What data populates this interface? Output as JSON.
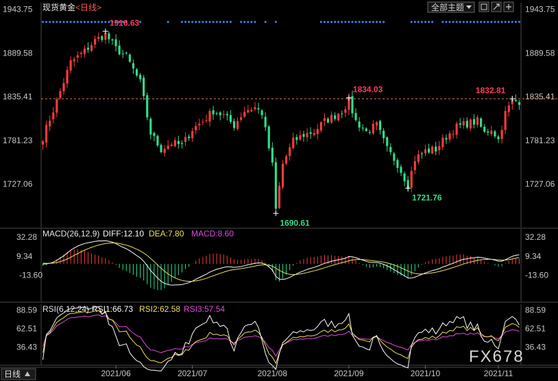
{
  "chart_data": {
    "type": "candlestick",
    "title": "现货黄金",
    "period_label": "<日线>",
    "theme_label": "全部主题",
    "current_price": 1832.81,
    "price_axis": {
      "ticks": [
        "1943.75",
        "1889.58",
        "1835.41",
        "1781.23",
        "1727.06"
      ],
      "tick_values": [
        1943.75,
        1889.58,
        1835.41,
        1781.23,
        1727.06
      ],
      "ylim": [
        1673,
        1952
      ]
    },
    "time_axis": {
      "labels": [
        "2021/06",
        "2021/07",
        "2021/08",
        "2021/09",
        "2021/10",
        "2021/11"
      ],
      "label_index": [
        21,
        43,
        66,
        88,
        110,
        131
      ],
      "bar_count": 138
    },
    "annotations": [
      {
        "label": "1916.63",
        "value": 1916.63,
        "index": 18,
        "type": "high"
      },
      {
        "label": "1690.61",
        "value": 1690.61,
        "index": 67,
        "type": "low"
      },
      {
        "label": "1834.03",
        "value": 1834.03,
        "index": 88,
        "type": "high"
      },
      {
        "label": "1721.76",
        "value": 1721.76,
        "index": 105,
        "type": "low"
      },
      {
        "label": "1832.81",
        "value": 1832.81,
        "index": 135,
        "type": "high"
      }
    ],
    "macd": {
      "title": "MACD(26,12,9)",
      "diff_label": "DIFF:12.10",
      "dea_label": "DEA:7.80",
      "macd_label": "MACD:8.60",
      "ticks": [
        "32.28",
        "9.34",
        "-13.60"
      ],
      "tick_values": [
        32.28,
        9.34,
        -13.6
      ],
      "ylim": [
        -45,
        42
      ]
    },
    "rsi": {
      "title": "RSI(6,12,24)",
      "rsi1_label": "RSI1:66.73",
      "rsi2_label": "RSI2:62.58",
      "rsi3_label": "RSI3:57.54",
      "ticks": [
        "88.59",
        "62.51",
        "36.43"
      ],
      "tick_values": [
        88.59,
        62.51,
        36.43
      ],
      "ylim": [
        12,
        97
      ]
    },
    "period_buttons": [
      "日线"
    ],
    "watermark": "FX678"
  },
  "colors": {
    "up": "#ff3b3b",
    "down": "#2ee08c",
    "diff": "#ffffff",
    "dea": "#f0e25a",
    "macd_label": "#e04ce0",
    "price_line": "#e07a3a",
    "grid": "#3a3a3a",
    "axis_text": "#c8c8c8",
    "high_anno": "#ff3b5c",
    "low_anno": "#3ddc84",
    "dots": "#3a8cff",
    "rsi1": "#ffffff",
    "rsi2": "#f0e25a",
    "rsi3": "#e04ce0"
  }
}
